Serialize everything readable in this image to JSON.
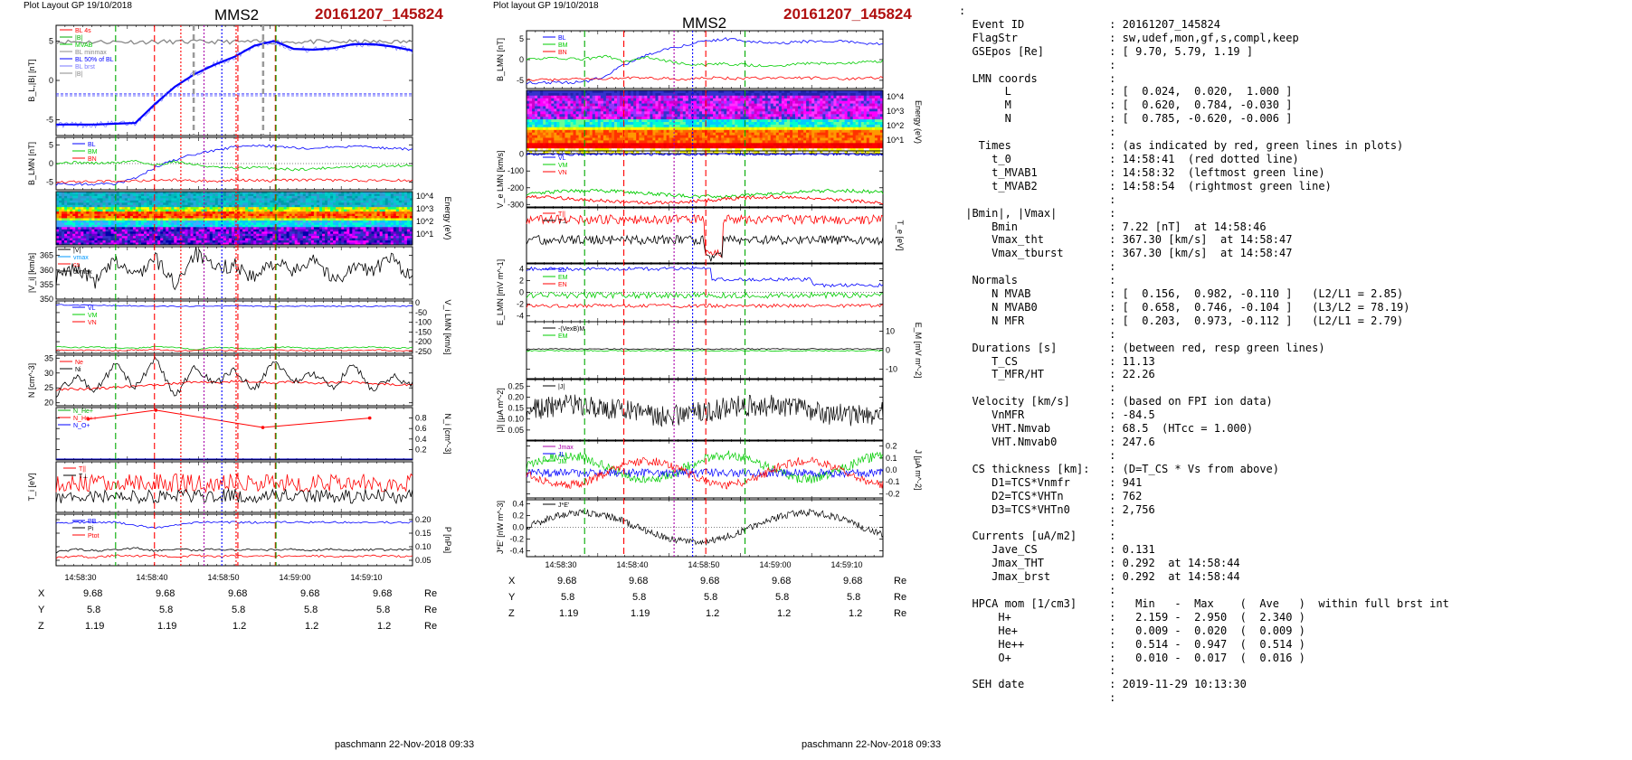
{
  "left": {
    "layout_label": "Plot Layout GP 19/10/2018",
    "spacecraft": "MMS2",
    "event": "20161207_145824",
    "footer": "paschmann 22-Nov-2018 09:33",
    "time_ticks": [
      "14:58:30",
      "14:58:40",
      "14:58:50",
      "14:59:00",
      "14:59:10"
    ],
    "positions": [
      {
        "label": "X",
        "values": [
          "9.68",
          "9.68",
          "9.68",
          "9.68",
          "9.68"
        ],
        "unit": "Re"
      },
      {
        "label": "Y",
        "values": [
          "5.8",
          "5.8",
          "5.8",
          "5.8",
          "5.8"
        ],
        "unit": "Re"
      },
      {
        "label": "Z",
        "values": [
          "1.19",
          "1.19",
          "1.2",
          "1.2",
          "1.2"
        ],
        "unit": "Re"
      }
    ]
  },
  "right": {
    "layout_label": "Plot layout GP 19/10/2018",
    "spacecraft": "MMS2",
    "event": "20161207_145824",
    "footer": "paschmann 22-Nov-2018 09:33",
    "time_ticks": [
      "14:58:30",
      "14:58:40",
      "14:58:50",
      "14:59:00",
      "14:59:10"
    ],
    "positions": [
      {
        "label": "X",
        "values": [
          "9.68",
          "9.68",
          "9.68",
          "9.68",
          "9.68"
        ],
        "unit": "Re"
      },
      {
        "label": "Y",
        "values": [
          "5.8",
          "5.8",
          "5.8",
          "5.8",
          "5.8"
        ],
        "unit": "Re"
      },
      {
        "label": "Z",
        "values": [
          "1.19",
          "1.19",
          "1.2",
          "1.2",
          "1.2"
        ],
        "unit": "Re"
      }
    ]
  },
  "info_lines": [
    ":",
    "  Event ID             : 20161207_145824",
    "  FlagStr              : sw,udef,mon,gf,s,compl,keep",
    "  GSEpos [Re]          : [ 9.70, 5.79, 1.19 ]",
    "                       :",
    "  LMN coords           :",
    "       L               : [  0.024,  0.020,  1.000 ]",
    "       M               : [  0.620,  0.784, -0.030 ]",
    "       N               : [  0.785, -0.620, -0.006 ]",
    "                       :",
    "   Times               : (as indicated by red, green lines in plots)",
    "     t_0               : 14:58:41  (red dotted line)",
    "     t_MVAB1           : 14:58:32  (leftmost green line)",
    "     t_MVAB2           : 14:58:54  (rightmost green line)",
    "                       :",
    " |Bmin|, |Vmax|        :",
    "     Bmin              : 7.22 [nT]  at 14:58:46",
    "     Vmax_tht          : 367.30 [km/s]  at 14:58:47",
    "     Vmax_tburst       : 367.30 [km/s]  at 14:58:47",
    "                       :",
    "  Normals              :",
    "     N MVAB            : [  0.156,  0.982, -0.110 ]   (L2/L1 = 2.85)",
    "     N MVAB0           : [  0.658,  0.746, -0.104 ]   (L3/L2 = 78.19)",
    "     N MFR             : [  0.203,  0.973, -0.112 ]   (L2/L1 = 2.79)",
    "                       :",
    "  Durations [s]        : (between red, resp green lines)",
    "     T_CS              : 11.13",
    "     T_MFR/HT          : 22.26",
    "                       :",
    "  Velocity [km/s]      : (based on FPI ion data)",
    "     VnMFR             : -84.5",
    "     VHT.Nmvab         : 68.5  (HTcc = 1.000)",
    "     VHT.Nmvab0        : 247.6",
    "                       :",
    "  CS thickness [km]:   : (D=T_CS * Vs from above)",
    "     D1=TCS*Vnmfr      : 941",
    "     D2=TCS*VHTn       : 762",
    "     D3=TCS*VHTn0      : 2,756",
    "                       :",
    "  Currents [uA/m2]     :",
    "     Jave_CS           : 0.131",
    "     Jmax_THT          : 0.292  at 14:58:44",
    "     Jmax_brst         : 0.292  at 14:58:44",
    "                       :",
    "  HPCA mom [1/cm3]     :   Min   -  Max    (  Ave   )  within full brst int",
    "      H+               :   2.159 -  2.950  (  2.340 )",
    "      He+              :   0.009 -  0.020  (  0.009 )",
    "      He++             :   0.514 -  0.947  (  0.514 )",
    "      O+               :   0.010 -  0.017  (  0.016 )",
    "                       :",
    "  SEH date             : 2019-11-29 10:13:30",
    "                       :"
  ],
  "chart_data": [
    {
      "type": "line",
      "title": "MMS2 20161207_145824 (left stack)",
      "x_axis": {
        "ticks": [
          "14:58:30",
          "14:58:40",
          "14:58:50",
          "14:59:00",
          "14:59:10"
        ]
      },
      "panels": [
        {
          "id": "bl",
          "ylabel": "B_L,|B| [nT]",
          "ylim": [
            -7,
            7
          ],
          "yticks": [
            "5",
            "0",
            "-5"
          ],
          "legend": [
            "BL 4s",
            "|B|",
            "MVAB",
            "BL minmax",
            "BL 50% of BL",
            "BL brst",
            "|B|"
          ],
          "series": [
            {
              "name": "BL 4s",
              "color": "#0000ff",
              "values": [
                -5.6,
                -5.6,
                -5.6,
                -5.5,
                -5.4,
                -3.0,
                -0.8,
                0.8,
                2.0,
                3.0,
                4.4,
                5.0,
                4.0,
                3.9,
                4.1,
                4.6,
                4.6,
                4.3,
                3.8
              ]
            }
          ]
        },
        {
          "id": "blmn",
          "ylabel": "B_LMN [nT]",
          "ylim": [
            -7,
            7
          ],
          "yticks": [
            "5",
            "0",
            "-5"
          ],
          "legend": [
            "BL",
            "BM",
            "BN"
          ],
          "series": [
            {
              "name": "BL",
              "color": "#0000ff",
              "values": [
                -5.6,
                -5.5,
                -5.5,
                -5.4,
                -4,
                -1,
                1,
                2.5,
                3.5,
                4.4,
                5.0,
                4.6,
                4.2,
                4.0,
                4.4,
                4.5,
                4.4,
                4.0,
                3.8
              ]
            },
            {
              "name": "BM",
              "color": "#00cc00",
              "values": [
                0.2,
                0.3,
                0.1,
                0.2,
                0.8,
                -0.5,
                0.6,
                -0.3,
                -1,
                -1.3,
                -1.0,
                -1.2,
                -1.6,
                -1.4,
                -1.0,
                -0.9,
                -0.8,
                -0.6,
                -0.4
              ]
            },
            {
              "name": "BN",
              "color": "#ff0000",
              "values": [
                -4.8,
                -4.9,
                -4.8,
                -4.7,
                -4.6,
                -4.5,
                -4.4,
                -4.6,
                -4.7,
                -4.4,
                -4.5,
                -4.6,
                -4.4,
                -4.3,
                -4.5,
                -4.4,
                -4.6,
                -4.5,
                -4.4
              ]
            }
          ]
        },
        {
          "id": "spec1",
          "ylabel": "Energy (eV)",
          "type": "spectrogram",
          "yticks": [
            "10^4",
            "10^3",
            "10^2",
            "10^1"
          ]
        },
        {
          "id": "vi",
          "ylabel": "|V_i| [km/s]",
          "ylim": [
            350,
            368
          ],
          "yticks": [
            "365",
            "360",
            "355",
            "350"
          ],
          "legend": [
            "|V|",
            "vmax",
            "cs",
            "dvmax"
          ],
          "series": [
            {
              "name": "|Vi|",
              "color": "#000000",
              "values": [
                357,
                361,
                356,
                363,
                358,
                364,
                355,
                366,
                360,
                362,
                357,
                363,
                359,
                365,
                356,
                361,
                360,
                364,
                357
              ]
            }
          ]
        },
        {
          "id": "vlmn",
          "ylabel": "V_i LMN [km/s]",
          "ylim": [
            -260,
            10
          ],
          "yticks": [
            "0",
            "-50",
            "-100",
            "-150",
            "-200",
            "-250"
          ],
          "legend": [
            "VL",
            "VM",
            "VN"
          ],
          "series": [
            {
              "name": "VL",
              "color": "#0000ff",
              "values": [
                -10,
                -12,
                -12,
                -14,
                -15,
                -16,
                -18,
                -17,
                -18,
                -16,
                -17,
                -18,
                -17,
                -16,
                -17,
                -18,
                -17,
                -16,
                -17
              ]
            },
            {
              "name": "VM",
              "color": "#00cc00",
              "values": [
                -225,
                -230,
                -228,
                -232,
                -235,
                -225,
                -230,
                -240,
                -228,
                -232,
                -235,
                -230,
                -228,
                -235,
                -232,
                -230,
                -228,
                -233,
                -231
              ]
            },
            {
              "name": "VN",
              "color": "#ff0000",
              "values": [
                -243,
                -245,
                -244,
                -246,
                -243,
                -242,
                -247,
                -244,
                -243,
                -246,
                -245,
                -243,
                -244,
                -246,
                -245,
                -244,
                -243,
                -245,
                -246
              ]
            }
          ]
        },
        {
          "id": "n",
          "ylabel": "N [cm^-3]",
          "ylim": [
            19,
            36
          ],
          "yticks": [
            "35",
            "30",
            "25",
            "20"
          ],
          "legend": [
            "Ne",
            "Ni"
          ],
          "series": [
            {
              "name": "Ne",
              "color": "#ff0000",
              "values": [
                24.5,
                24.6,
                24.8,
                25.2,
                25.5,
                26.0,
                26.5,
                27.0,
                26.8,
                27.2,
                27.0,
                26.8,
                27.0,
                26.5,
                26.8,
                26.9,
                26.5,
                26.2,
                26.0
              ]
            },
            {
              "name": "Ni",
              "color": "#000000",
              "values": [
                23,
                29,
                24,
                33,
                25,
                35,
                22,
                32,
                26,
                31,
                24,
                34,
                27,
                30,
                25,
                33,
                24,
                29,
                26
              ]
            }
          ]
        },
        {
          "id": "ni",
          "ylabel": "N_i [cm^-3]",
          "ylim": [
            0,
            1.0
          ],
          "yticks": [
            "0.8",
            "0.6",
            "0.4",
            "0.2"
          ],
          "legend": [
            "N_He+",
            "N_He++",
            "N_O+"
          ],
          "series": [
            {
              "name": "N_He++",
              "color": "#ff0000",
              "x_frac": [
                0.09,
                0.28,
                0.58,
                0.88
              ],
              "values": [
                0.78,
                0.95,
                0.62,
                0.8
              ]
            }
          ]
        },
        {
          "id": "ti",
          "ylabel": "T_i [eV]",
          "yticks": [],
          "legend": [
            "T||",
            "T⊥"
          ],
          "series": [
            {
              "name": "T||",
              "color": "#ff0000"
            },
            {
              "name": "T⊥",
              "color": "#000000"
            }
          ]
        },
        {
          "id": "p",
          "ylabel": "P [nPa]",
          "ylim": [
            0.03,
            0.22
          ],
          "yticks": [
            "0.20",
            "0.15",
            "0.10",
            "0.05"
          ],
          "legend": [
            "PB",
            "Pi",
            "Ptot"
          ],
          "series": [
            {
              "name": "PB",
              "color": "#0000ff",
              "values": [
                0.19,
                0.19,
                0.19,
                0.19,
                0.18,
                0.17,
                0.18,
                0.19,
                0.19,
                0.19,
                0.19,
                0.19,
                0.19,
                0.19,
                0.19,
                0.19,
                0.19,
                0.19,
                0.19
              ]
            },
            {
              "name": "Pi",
              "color": "#000000",
              "values": [
                0.08,
                0.09,
                0.085,
                0.09,
                0.095,
                0.085,
                0.09,
                0.088,
                0.09,
                0.087,
                0.09,
                0.088,
                0.09,
                0.087,
                0.09,
                0.088,
                0.089,
                0.088,
                0.09
              ]
            },
            {
              "name": "Ptot",
              "color": "#ff0000",
              "values": [
                0.06,
                0.065,
                0.06,
                0.068,
                0.065,
                0.07,
                0.062,
                0.068,
                0.064,
                0.067,
                0.063,
                0.066,
                0.064,
                0.066,
                0.065,
                0.064,
                0.066,
                0.064,
                0.065
              ]
            }
          ]
        }
      ]
    },
    {
      "type": "line",
      "title": "MMS2 20161207_145824 (right stack)",
      "x_axis": {
        "ticks": [
          "14:58:30",
          "14:58:40",
          "14:58:50",
          "14:59:00",
          "14:59:10"
        ]
      },
      "panels": [
        {
          "id": "blmn",
          "ylabel": "B_LMN [nT]",
          "ylim": [
            -7,
            7
          ],
          "yticks": [
            "5",
            "0",
            "-5"
          ],
          "legend": [
            "BL",
            "BM",
            "BN"
          ]
        },
        {
          "id": "spec",
          "ylabel": "Energy (eV)",
          "type": "spectrogram",
          "yticks": [
            "10^4",
            "10^3",
            "10^2",
            "10^1"
          ]
        },
        {
          "id": "velmn",
          "ylabel": "V_e LMN [km/s]",
          "ylim": [
            -320,
            20
          ],
          "yticks": [
            "0",
            "-100",
            "-200",
            "-300"
          ],
          "legend": [
            "VL",
            "VM",
            "VN"
          ]
        },
        {
          "id": "te",
          "ylabel": "T_e [eV]",
          "yticks": [],
          "legend": [
            "T||",
            "T⊥"
          ]
        },
        {
          "id": "elmn",
          "ylabel": "E_LMN [mV m^-1]",
          "ylim": [
            -5,
            5
          ],
          "yticks": [
            "4",
            "2",
            "0",
            "-2",
            "-4"
          ],
          "legend": [
            "EL",
            "EM",
            "EN"
          ]
        },
        {
          "id": "em",
          "ylabel": "E_M [mV m^-2]",
          "ylim": [
            -15,
            15
          ],
          "yticks": [
            "10",
            "0",
            "-10"
          ],
          "legend": [
            "-(VexB)M",
            "EM"
          ]
        },
        {
          "id": "j",
          "ylabel": "|J| [μA m^-2]",
          "ylim": [
            0,
            0.28
          ],
          "yticks": [
            "0.25",
            "0.20",
            "0.15",
            "0.10",
            "0.05"
          ],
          "legend": [
            "|J|"
          ]
        },
        {
          "id": "jlmn",
          "ylabel": "J [μA m^-2]",
          "ylim": [
            -0.25,
            0.25
          ],
          "yticks": [
            "0.2",
            "0.1",
            "0.0",
            "-0.1",
            "-0.2"
          ],
          "legend": [
            "Jmax",
            "JL",
            "JM"
          ]
        },
        {
          "id": "je",
          "ylabel": "J*E' [nW m^-3]",
          "ylim": [
            -0.5,
            0.5
          ],
          "yticks": [
            "0.4",
            "0.2",
            "0.0",
            "-0.2",
            "-0.4"
          ],
          "legend": [
            "J*E'"
          ]
        }
      ]
    }
  ]
}
